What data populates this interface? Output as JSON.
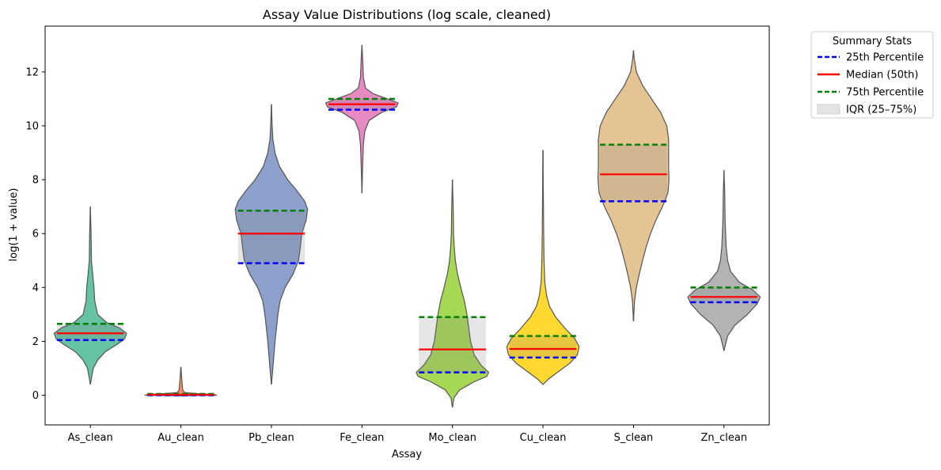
{
  "chart_data": {
    "type": "violin",
    "title": "Assay Value Distributions (log scale, cleaned)",
    "xlabel": "Assay",
    "ylabel": "log(1 + value)",
    "ylim": [
      -1.1,
      13.7
    ],
    "yticks": [
      0,
      2,
      4,
      6,
      8,
      10,
      12
    ],
    "grid": false,
    "legend": {
      "title": "Summary Stats",
      "placement": "outside-top-right",
      "entries": [
        {
          "label": "25th Percentile",
          "style": "dashed",
          "color": "#0000ff"
        },
        {
          "label": "Median (50th)",
          "style": "solid",
          "color": "#ff0000"
        },
        {
          "label": "75th Percentile",
          "style": "dashed",
          "color": "#008000"
        },
        {
          "label": "IQR (25–75%)",
          "style": "patch",
          "color": "#d9d9d9"
        }
      ]
    },
    "categories": [
      "As_clean",
      "Au_clean",
      "Pb_clean",
      "Fe_clean",
      "Mo_clean",
      "Cu_clean",
      "S_clean",
      "Zn_clean"
    ],
    "violins": [
      {
        "name": "As_clean",
        "color": "#66c2a5",
        "min": 0.4,
        "max": 7.0,
        "p25": 2.05,
        "median": 2.3,
        "p75": 2.65,
        "profile": [
          [
            0.4,
            0
          ],
          [
            0.7,
            0.04
          ],
          [
            1.0,
            0.08
          ],
          [
            1.3,
            0.2
          ],
          [
            1.6,
            0.4
          ],
          [
            1.9,
            0.75
          ],
          [
            2.1,
            0.95
          ],
          [
            2.3,
            1.0
          ],
          [
            2.5,
            0.8
          ],
          [
            2.7,
            0.45
          ],
          [
            3.0,
            0.2
          ],
          [
            3.5,
            0.12
          ],
          [
            4.0,
            0.1
          ],
          [
            4.4,
            0.07
          ],
          [
            5.0,
            0.03
          ],
          [
            6.0,
            0.02
          ],
          [
            7.0,
            0
          ]
        ]
      },
      {
        "name": "Au_clean",
        "color": "#fc8d62",
        "min": 0.0,
        "max": 1.05,
        "p25": 0.0,
        "median": 0.02,
        "p75": 0.05,
        "profile": [
          [
            -0.02,
            0
          ],
          [
            0.0,
            1.0
          ],
          [
            0.03,
            0.9
          ],
          [
            0.06,
            0.45
          ],
          [
            0.1,
            0.1
          ],
          [
            0.2,
            0.05
          ],
          [
            0.5,
            0.03
          ],
          [
            1.05,
            0
          ]
        ]
      },
      {
        "name": "Pb_clean",
        "color": "#8da0cb",
        "min": 0.4,
        "max": 10.8,
        "p25": 4.9,
        "median": 6.0,
        "p75": 6.85,
        "profile": [
          [
            0.4,
            0
          ],
          [
            1.0,
            0.04
          ],
          [
            1.5,
            0.07
          ],
          [
            2.0,
            0.1
          ],
          [
            2.5,
            0.14
          ],
          [
            3.0,
            0.18
          ],
          [
            3.5,
            0.24
          ],
          [
            4.0,
            0.38
          ],
          [
            4.5,
            0.6
          ],
          [
            5.0,
            0.75
          ],
          [
            5.5,
            0.8
          ],
          [
            6.0,
            0.84
          ],
          [
            6.5,
            0.96
          ],
          [
            6.9,
            1.0
          ],
          [
            7.2,
            0.92
          ],
          [
            7.6,
            0.7
          ],
          [
            8.0,
            0.45
          ],
          [
            8.5,
            0.22
          ],
          [
            9.0,
            0.1
          ],
          [
            9.5,
            0.04
          ],
          [
            10.0,
            0.02
          ],
          [
            10.8,
            0
          ]
        ]
      },
      {
        "name": "Fe_clean",
        "color": "#e78ac3",
        "min": 7.5,
        "max": 13.0,
        "p25": 10.6,
        "median": 10.8,
        "p75": 11.0,
        "profile": [
          [
            7.5,
            0
          ],
          [
            8.5,
            0.02
          ],
          [
            9.3,
            0.04
          ],
          [
            9.8,
            0.08
          ],
          [
            10.2,
            0.2
          ],
          [
            10.5,
            0.55
          ],
          [
            10.7,
            0.95
          ],
          [
            10.85,
            1.0
          ],
          [
            11.0,
            0.7
          ],
          [
            11.2,
            0.3
          ],
          [
            11.4,
            0.1
          ],
          [
            11.8,
            0.04
          ],
          [
            12.5,
            0.02
          ],
          [
            13.0,
            0
          ]
        ]
      },
      {
        "name": "Mo_clean",
        "color": "#a6d854",
        "min": -0.45,
        "max": 8.0,
        "p25": 0.85,
        "median": 1.7,
        "p75": 2.9,
        "profile": [
          [
            -0.45,
            0
          ],
          [
            -0.1,
            0.04
          ],
          [
            0.2,
            0.2
          ],
          [
            0.5,
            0.6
          ],
          [
            0.7,
            0.95
          ],
          [
            0.85,
            1.0
          ],
          [
            1.1,
            0.8
          ],
          [
            1.5,
            0.6
          ],
          [
            2.0,
            0.5
          ],
          [
            2.5,
            0.45
          ],
          [
            3.0,
            0.4
          ],
          [
            3.5,
            0.33
          ],
          [
            4.0,
            0.23
          ],
          [
            4.5,
            0.14
          ],
          [
            5.0,
            0.08
          ],
          [
            5.5,
            0.05
          ],
          [
            6.0,
            0.03
          ],
          [
            7.0,
            0.02
          ],
          [
            8.0,
            0
          ]
        ]
      },
      {
        "name": "Cu_clean",
        "color": "#ffd92f",
        "min": 0.4,
        "max": 9.1,
        "p25": 1.4,
        "median": 1.72,
        "p75": 2.2,
        "profile": [
          [
            0.4,
            0
          ],
          [
            0.6,
            0.15
          ],
          [
            0.9,
            0.45
          ],
          [
            1.2,
            0.75
          ],
          [
            1.5,
            0.95
          ],
          [
            1.8,
            1.0
          ],
          [
            2.1,
            0.88
          ],
          [
            2.5,
            0.6
          ],
          [
            2.9,
            0.35
          ],
          [
            3.3,
            0.18
          ],
          [
            3.7,
            0.1
          ],
          [
            4.2,
            0.05
          ],
          [
            5.0,
            0.03
          ],
          [
            6.0,
            0.02
          ],
          [
            7.5,
            0.01
          ],
          [
            9.1,
            0
          ]
        ]
      },
      {
        "name": "S_clean",
        "color": "#e5c494",
        "min": 2.75,
        "max": 12.8,
        "p25": 7.2,
        "median": 8.2,
        "p75": 9.3,
        "profile": [
          [
            2.75,
            0
          ],
          [
            3.5,
            0.03
          ],
          [
            4.0,
            0.08
          ],
          [
            4.5,
            0.16
          ],
          [
            5.0,
            0.25
          ],
          [
            5.5,
            0.35
          ],
          [
            6.0,
            0.47
          ],
          [
            6.5,
            0.62
          ],
          [
            7.0,
            0.8
          ],
          [
            7.5,
            0.95
          ],
          [
            8.0,
            0.98
          ],
          [
            8.5,
            0.97
          ],
          [
            9.0,
            0.97
          ],
          [
            9.5,
            0.97
          ],
          [
            10.0,
            0.92
          ],
          [
            10.5,
            0.75
          ],
          [
            11.0,
            0.5
          ],
          [
            11.5,
            0.25
          ],
          [
            12.0,
            0.08
          ],
          [
            12.5,
            0.02
          ],
          [
            12.8,
            0
          ]
        ]
      },
      {
        "name": "Zn_clean",
        "color": "#b3b3b3",
        "min": 1.65,
        "max": 8.35,
        "p25": 3.45,
        "median": 3.65,
        "p75": 4.0,
        "profile": [
          [
            1.65,
            0
          ],
          [
            2.2,
            0.1
          ],
          [
            2.6,
            0.3
          ],
          [
            3.0,
            0.65
          ],
          [
            3.4,
            0.92
          ],
          [
            3.65,
            1.0
          ],
          [
            3.9,
            0.8
          ],
          [
            4.2,
            0.42
          ],
          [
            4.6,
            0.18
          ],
          [
            5.0,
            0.1
          ],
          [
            5.5,
            0.06
          ],
          [
            6.5,
            0.03
          ],
          [
            7.5,
            0.02
          ],
          [
            8.35,
            0
          ]
        ]
      }
    ]
  }
}
